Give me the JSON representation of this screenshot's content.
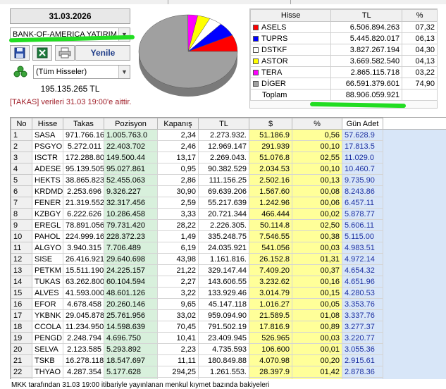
{
  "header": {
    "date": "31.03.2026",
    "broker_select": "BANK-OF-AMERICA YATIRIM",
    "refresh_label": "Yenile",
    "filter_select": "(Tüm Hisseler)",
    "total_value": "195.135.265 TL",
    "takas_note": "[TAKAS] verileri 31.03 19:00'e aittir."
  },
  "icons": [
    "save-icon",
    "excel-icon",
    "print-icon",
    "stack-icon"
  ],
  "legend": {
    "headers": [
      "Hisse",
      "TL",
      "%"
    ],
    "rows": [
      {
        "name": "ASELS",
        "tl": "6.506.894.263",
        "pct": "07,32",
        "color": "#ff0000"
      },
      {
        "name": "TUPRS",
        "tl": "5.445.820.017",
        "pct": "06,13",
        "color": "#0000ff"
      },
      {
        "name": "DSTKF",
        "tl": "3.827.267.194",
        "pct": "04,30",
        "color": "#ffffff"
      },
      {
        "name": "ASTOR",
        "tl": "3.669.582.540",
        "pct": "04,13",
        "color": "#ffff00"
      },
      {
        "name": "TERA",
        "tl": "2.865.115.718",
        "pct": "03,22",
        "color": "#ff00ff"
      },
      {
        "name": "DİGER",
        "tl": "66.591.379.601",
        "pct": "74,90",
        "color": "#a0a0a0"
      },
      {
        "name": "Toplam",
        "tl": "88.906.059.921",
        "pct": "",
        "color": ""
      }
    ]
  },
  "chart_data": {
    "type": "pie",
    "labels": [
      "ASELS",
      "TUPRS",
      "DSTKF",
      "ASTOR",
      "TERA",
      "DİGER"
    ],
    "values": [
      7.32,
      6.13,
      4.3,
      4.13,
      3.22,
      74.9
    ],
    "colors": [
      "#ff0000",
      "#0000ff",
      "#ffffff",
      "#ffff00",
      "#ff00ff",
      "#a0a0a0"
    ]
  },
  "table": {
    "headers": [
      "No",
      "Hisse",
      "Takas",
      "Pozisyon",
      "Kapanış",
      "TL",
      "$",
      "%",
      "Gün Adet"
    ],
    "rows": [
      [
        "1",
        "SASA",
        "971.766.16",
        "1.005.763.0",
        "2,34",
        "2.273.932.",
        "51.186.9",
        "0,56",
        "57.628.9"
      ],
      [
        "2",
        "PSGYO",
        "5.272.011",
        "22.403.702",
        "2,46",
        "12.969.147",
        "291.939",
        "00,10",
        "17.813.5"
      ],
      [
        "3",
        "ISCTR",
        "172.288.80",
        "149.500.44",
        "13,17",
        "2.269.043.",
        "51.076.8",
        "02,55",
        "11.029.0"
      ],
      [
        "4",
        "ADESE",
        "95.139.505",
        "95.027.861",
        "0,95",
        "90.382.529",
        "2.034.53",
        "00,10",
        "10.460.7"
      ],
      [
        "5",
        "HEKTS",
        "38.865.823",
        "52.455.063",
        "2,86",
        "111.156.25",
        "2.502.16",
        "00,13",
        "9.735.90"
      ],
      [
        "6",
        "KRDMD",
        "2.253.696",
        "9.326.227",
        "30,90",
        "69.639.206",
        "1.567.60",
        "00,08",
        "8.243.86"
      ],
      [
        "7",
        "FENER",
        "21.319.552",
        "32.317.456",
        "2,59",
        "55.217.639",
        "1.242.96",
        "00,06",
        "6.457.11"
      ],
      [
        "8",
        "KZBGY",
        "6.222.626",
        "10.286.458",
        "3,33",
        "20.721.344",
        "466.444",
        "00,02",
        "5.878.77"
      ],
      [
        "9",
        "EREGL",
        "78.891.056",
        "79.731.420",
        "28,22",
        "2.226.305.",
        "50.114.8",
        "02,50",
        "5.606.11"
      ],
      [
        "10",
        "PAHOL",
        "224.999.16",
        "228.372.23",
        "1,49",
        "335.248.75",
        "7.546.55",
        "00,38",
        "5.115.00"
      ],
      [
        "11",
        "ALGYO",
        "3.940.315",
        "7.706.489",
        "6,19",
        "24.035.921",
        "541.056",
        "00,03",
        "4.983.51"
      ],
      [
        "12",
        "SISE",
        "26.416.921",
        "29.640.698",
        "43,98",
        "1.161.816.",
        "26.152.8",
        "01,31",
        "4.972.14"
      ],
      [
        "13",
        "PETKM",
        "15.511.190",
        "24.225.157",
        "21,22",
        "329.147.44",
        "7.409.20",
        "00,37",
        "4.654.32"
      ],
      [
        "14",
        "TUKAS",
        "63.262.800",
        "60.104.594",
        "2,27",
        "143.606.55",
        "3.232.62",
        "00,16",
        "4.651.96"
      ],
      [
        "15",
        "ALVES",
        "41.593.000",
        "48.601.126",
        "3,22",
        "133.929.46",
        "3.014.79",
        "00,15",
        "4.280.53"
      ],
      [
        "16",
        "EFOR",
        "4.678.458",
        "20.260.146",
        "9,65",
        "45.147.118",
        "1.016.27",
        "00,05",
        "3.353.76"
      ],
      [
        "17",
        "YKBNK",
        "29.045.878",
        "25.761.956",
        "33,02",
        "959.094.90",
        "21.589.5",
        "01,08",
        "3.337.76"
      ],
      [
        "18",
        "CCOLA",
        "11.234.950",
        "14.598.639",
        "70,45",
        "791.502.19",
        "17.816.9",
        "00,89",
        "3.277.37"
      ],
      [
        "19",
        "PENGD",
        "2.248.794",
        "4.696.750",
        "10,41",
        "23.409.945",
        "526.965",
        "00,03",
        "3.220.77"
      ],
      [
        "20",
        "SELVA",
        "2.123.585",
        "5.293.892",
        "2,23",
        "4.735.593",
        "106.600",
        "00,01",
        "3.055.36"
      ],
      [
        "21",
        "TSKB",
        "16.278.118",
        "18.547.697",
        "11,11",
        "180.849.88",
        "4.070.98",
        "00,20",
        "2.915.61"
      ],
      [
        "22",
        "THYAO",
        "4.287.354",
        "5.177.628",
        "294,25",
        "1.261.553.",
        "28.397.9",
        "01,42",
        "2.878.36"
      ],
      [
        "23",
        "VAKFN",
        "83.054.751",
        "86.932.643",
        "1,71",
        "142.023.62",
        "3.196.99",
        "00,16",
        "2.829.92"
      ],
      [
        "24",
        "VAKBN",
        "37.936.909",
        "39.591.137",
        "30,00",
        "1.138.107.",
        "25.619.1",
        "01,28",
        "2.735.70"
      ]
    ]
  },
  "footer": "MKK tarafından 31.03 19:00 itibariyle yayınlanan menkul kıymet bazında bakiyeleri"
}
